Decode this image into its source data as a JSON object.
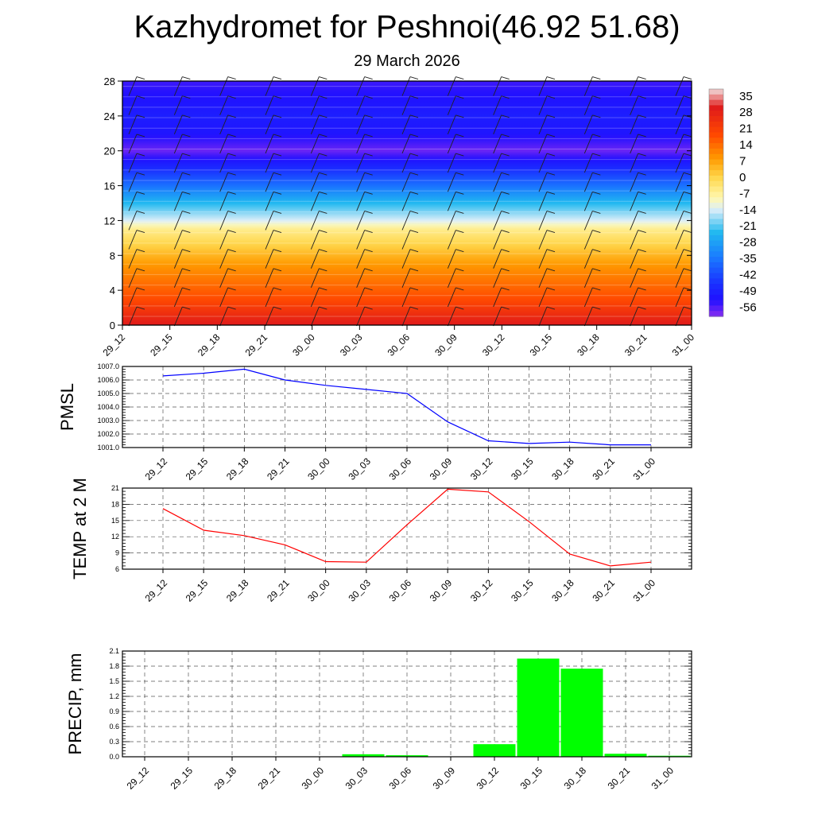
{
  "page": {
    "title": "Kazhydromet for Peshnoi(46.92 51.68)",
    "subtitle": "29 March 2026"
  },
  "chart_data": [
    {
      "type": "heatmap",
      "name": "temperature-profile",
      "title": "Kazhydromet for Peshnoi(46.92 51.68)",
      "subtitle": "29 March 2026",
      "x_tick_labels": [
        "29_12",
        "29_15",
        "29_18",
        "29_21",
        "30_00",
        "30_03",
        "30_06",
        "30_09",
        "30_12",
        "30_15",
        "30_18",
        "30_21",
        "31_00"
      ],
      "y_ticks": [
        0,
        4,
        8,
        12,
        16,
        20,
        24,
        28
      ],
      "ylim": [
        0,
        28
      ],
      "colorbar_labels": [
        "35",
        "28",
        "21",
        "14",
        "7",
        "0",
        "-7",
        "-14",
        "-21",
        "-28",
        "-35",
        "-42",
        "-49",
        "-56"
      ],
      "colorbar_stops": [
        {
          "value": 38,
          "color": "#f2dede"
        },
        {
          "value": 30,
          "color": "#e01a1a"
        },
        {
          "value": 18,
          "color": "#ff4a00"
        },
        {
          "value": 8,
          "color": "#ff9a00"
        },
        {
          "value": 0,
          "color": "#ffd64a"
        },
        {
          "value": -9,
          "color": "#fff8b0"
        },
        {
          "value": -14,
          "color": "#dceef8"
        },
        {
          "value": -24,
          "color": "#20b8f0"
        },
        {
          "value": -35,
          "color": "#1a78ff"
        },
        {
          "value": -46,
          "color": "#1a30ff"
        },
        {
          "value": -53,
          "color": "#2010ff"
        },
        {
          "value": -60,
          "color": "#8a2ef0"
        }
      ],
      "level_profile": [
        {
          "level": 0,
          "value": 30
        },
        {
          "level": 3,
          "value": 18
        },
        {
          "level": 7,
          "value": 8
        },
        {
          "level": 11,
          "value": -6
        },
        {
          "level": 12,
          "value": -14
        },
        {
          "level": 14,
          "value": -24
        },
        {
          "level": 16,
          "value": -36
        },
        {
          "level": 18,
          "value": -47
        },
        {
          "level": 20,
          "value": -58
        },
        {
          "level": 22,
          "value": -52
        },
        {
          "level": 24,
          "value": -50
        },
        {
          "level": 28,
          "value": -55
        }
      ]
    },
    {
      "type": "line",
      "name": "pmsl",
      "ylabel": "PMSL",
      "x_tick_labels": [
        "29_12",
        "29_15",
        "29_18",
        "29_21",
        "30_00",
        "30_03",
        "30_06",
        "30_09",
        "30_12",
        "30_15",
        "30_18",
        "30_21",
        "31_00"
      ],
      "y_tick_labels": [
        "1007.0",
        "1006.0",
        "1005.0",
        "1004.0",
        "1003.0",
        "1002.0",
        "1001.0"
      ],
      "ylim": [
        1001.0,
        1007.0
      ],
      "values": [
        1006.3,
        1006.5,
        1006.8,
        1006.0,
        1005.6,
        1005.3,
        1005.0,
        1002.9,
        1001.5,
        1001.3,
        1001.4,
        1001.2,
        1001.2
      ],
      "color": "#0000ff"
    },
    {
      "type": "line",
      "name": "temp2m",
      "ylabel": "TEMP at 2 M",
      "x_tick_labels": [
        "29_12",
        "29_15",
        "29_18",
        "29_21",
        "30_00",
        "30_03",
        "30_06",
        "30_09",
        "30_12",
        "30_15",
        "30_18",
        "30_21",
        "31_00"
      ],
      "y_tick_labels": [
        "21",
        "18",
        "15",
        "12",
        "9",
        "6"
      ],
      "ylim": [
        6,
        21
      ],
      "values": [
        17.2,
        13.2,
        12.2,
        10.5,
        7.4,
        7.3,
        14.2,
        20.8,
        20.3,
        14.8,
        8.8,
        6.6,
        7.3
      ],
      "color": "#ff0000"
    },
    {
      "type": "bar",
      "name": "precip",
      "ylabel": "PRECIP, mm",
      "categories": [
        "29_12",
        "29_15",
        "29_18",
        "29_21",
        "30_00",
        "30_03",
        "30_06",
        "30_09",
        "30_12",
        "30_15",
        "30_18",
        "30_21",
        "31_00"
      ],
      "y_tick_labels": [
        "2.1",
        "1.8",
        "1.5",
        "1.2",
        "0.9",
        "0.6",
        "0.3",
        "0.0"
      ],
      "ylim": [
        0,
        2.1
      ],
      "values": [
        0.0,
        0.0,
        0.0,
        0.0,
        0.0,
        0.05,
        0.03,
        0.0,
        0.25,
        1.95,
        1.75,
        0.06,
        0.02
      ],
      "color": "#00ff00"
    }
  ]
}
